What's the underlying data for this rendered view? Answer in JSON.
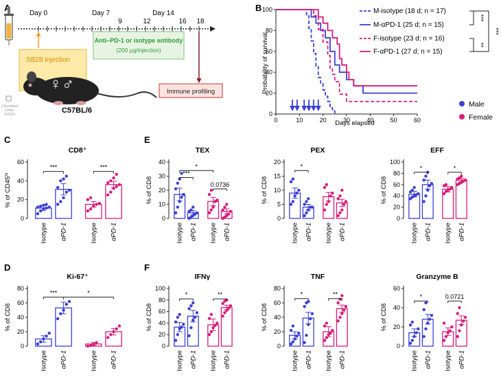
{
  "panel_labels": {
    "A": "A",
    "B": "B",
    "C": "C",
    "D": "D",
    "E": "E",
    "F": "F"
  },
  "colors": {
    "male": "#3b3fd4",
    "female": "#d81b7a",
    "green": "#2e9a3c",
    "orange": "#f0a030",
    "maroon": "#8b1a2a",
    "sb28_fill": "#fde9a8"
  },
  "panel_a": {
    "days": [
      {
        "label": "Day 0",
        "day": 0,
        "pos": "top"
      },
      {
        "label": "Day 7",
        "day": 7,
        "pos": "top"
      },
      {
        "label": "9",
        "day": 9,
        "pos": "mid"
      },
      {
        "label": "12",
        "day": 12,
        "pos": "mid"
      },
      {
        "label": "Day 14",
        "day": 14,
        "pos": "top"
      },
      {
        "label": "16",
        "day": 16,
        "pos": "mid"
      },
      {
        "label": "18",
        "day": 18,
        "pos": "mid"
      }
    ],
    "injection_days": [
      7,
      9,
      12,
      14,
      16
    ],
    "sb28_label": "SB28 injection",
    "antibody_line1": "Anti–PD-1 or isotype antibody",
    "antibody_line2": "(200 μg/injection)",
    "profiling_label": "Immune profiling",
    "strain_label": "C57BL/6",
    "clinic_line1": "Cleveland",
    "clinic_line2": "Clinic",
    "clinic_line3": "©2022",
    "sex_symbols": "♀♂"
  },
  "panel_b": {
    "chart_data": {
      "type": "line",
      "title": "",
      "xlabel": "Days elapsed",
      "ylabel": "Probability of survival",
      "xlim": [
        0,
        60
      ],
      "ylim": [
        0,
        100
      ],
      "xticks": [
        0,
        10,
        20,
        30,
        40,
        50,
        60
      ],
      "yticks": [
        0,
        20,
        40,
        60,
        80,
        100
      ],
      "series": [
        {
          "name": "M-isotype (18 d; n = 17)",
          "group": "male",
          "dashed": true,
          "x": [
            0,
            13,
            14,
            15,
            16,
            17,
            18,
            19,
            20,
            21,
            22,
            23,
            24,
            25
          ],
          "y": [
            100,
            94,
            82,
            70,
            58,
            46,
            35,
            29,
            23,
            17,
            12,
            6,
            3,
            0
          ]
        },
        {
          "name": "M-αPD-1 (25 d; n = 15)",
          "group": "male",
          "dashed": false,
          "x": [
            0,
            15,
            17,
            19,
            21,
            23,
            25,
            27,
            30,
            33,
            37,
            60
          ],
          "y": [
            100,
            93,
            87,
            80,
            73,
            60,
            47,
            40,
            33,
            27,
            20,
            20
          ]
        },
        {
          "name": "F-isotype (23 d; n = 16)",
          "group": "female",
          "dashed": true,
          "x": [
            0,
            16,
            18,
            20,
            22,
            23,
            24,
            25,
            27,
            30,
            60
          ],
          "y": [
            100,
            94,
            81,
            69,
            56,
            44,
            38,
            31,
            19,
            12,
            12
          ]
        },
        {
          "name": "F-αPD-1 (27 d; n = 15)",
          "group": "female",
          "dashed": false,
          "x": [
            0,
            18,
            20,
            22,
            24,
            26,
            27,
            28,
            30,
            31,
            33,
            60
          ],
          "y": [
            100,
            93,
            87,
            80,
            73,
            67,
            53,
            47,
            40,
            33,
            27,
            27
          ]
        }
      ],
      "arrow_days": [
        7,
        9,
        12,
        14,
        16,
        18
      ],
      "brackets": [
        {
          "pair": [
            0,
            1
          ],
          "label": "***"
        },
        {
          "pair": [
            2,
            3
          ],
          "label": "**"
        },
        {
          "pair": [
            0,
            3
          ],
          "label": "***"
        }
      ]
    },
    "legend_male": "Male",
    "legend_female": "Female"
  },
  "bar_panels": [
    {
      "key": "C",
      "title": "CD8⁺",
      "ylabel": "% of CD45ʰⁱ",
      "ymax": 60,
      "yticks": [
        0,
        20,
        40,
        60
      ],
      "means": [
        11,
        31,
        15,
        36
      ],
      "errs": [
        2.5,
        6,
        3,
        3.5
      ],
      "points": [
        [
          5,
          8,
          10,
          11,
          12,
          12,
          13,
          14,
          15
        ],
        [
          15,
          18,
          22,
          28,
          30,
          33,
          40,
          42,
          45
        ],
        [
          8,
          10,
          13,
          15,
          16,
          20,
          22
        ],
        [
          25,
          28,
          32,
          34,
          36,
          38,
          40,
          43,
          47
        ]
      ],
      "sig": [
        {
          "i": 0,
          "j": 1,
          "label": "***",
          "y": 50
        },
        {
          "i": 2,
          "j": 3,
          "label": "***",
          "y": 50
        }
      ],
      "xlabels": [
        "Isotype",
        "αPD-1",
        "Isotype",
        "αPD-1"
      ]
    },
    {
      "key": "E1",
      "title": "TEX",
      "ylabel": "% of CD8",
      "ymax": 40,
      "yticks": [
        0,
        10,
        20,
        30,
        40
      ],
      "means": [
        17,
        4,
        12,
        5
      ],
      "errs": [
        4.5,
        1.5,
        3,
        1.8
      ],
      "points": [
        [
          4,
          8,
          12,
          15,
          17,
          21,
          25,
          28,
          32
        ],
        [
          0,
          1,
          2,
          3,
          4,
          5,
          6,
          8
        ],
        [
          4,
          6,
          8,
          12,
          13,
          17,
          20
        ],
        [
          0,
          1,
          2,
          3,
          5,
          6,
          8,
          10
        ]
      ],
      "sig": [
        {
          "i": 0,
          "j": 1,
          "label": "***",
          "y": 29
        },
        {
          "i": 0,
          "j": 2,
          "label": "*",
          "y": 34
        },
        {
          "i": 2,
          "j": 3,
          "label": "0.0736",
          "y": 21
        }
      ],
      "xlabels": [
        "Isotype",
        "αPD-1",
        "Isotype",
        "αPD-1"
      ]
    },
    {
      "key": "E2",
      "title": "PEX",
      "ylabel": "% of CD8",
      "ymax": 20,
      "yticks": [
        0,
        5,
        10,
        15,
        20
      ],
      "means": [
        9,
        4,
        7.7,
        5.5
      ],
      "errs": [
        1.8,
        1,
        1.5,
        1.3
      ],
      "points": [
        [
          5,
          6,
          8,
          9,
          10,
          13,
          14
        ],
        [
          1,
          2,
          3,
          4,
          4,
          5,
          6,
          7
        ],
        [
          3,
          5,
          6,
          8,
          9,
          11,
          12
        ],
        [
          1,
          2,
          3,
          5,
          6,
          7,
          8,
          10
        ]
      ],
      "sig": [
        {
          "i": 0,
          "j": 1,
          "label": "*",
          "y": 17
        }
      ],
      "xlabels": [
        "Isotype",
        "αPD-1",
        "Isotype",
        "αPD-1"
      ]
    },
    {
      "key": "E3",
      "title": "EFF",
      "ylabel": "% of CD8",
      "ymax": 100,
      "yticks": [
        0,
        20,
        40,
        60,
        80,
        100
      ],
      "means": [
        43,
        60,
        52,
        68
      ],
      "errs": [
        5,
        8,
        5,
        3
      ],
      "points": [
        [
          35,
          38,
          40,
          42,
          44,
          47,
          50,
          55
        ],
        [
          30,
          40,
          50,
          58,
          62,
          68,
          75,
          82
        ],
        [
          44,
          48,
          50,
          52,
          55,
          58,
          60
        ],
        [
          60,
          62,
          64,
          66,
          68,
          70,
          72,
          75
        ]
      ],
      "sig": [
        {
          "i": 0,
          "j": 1,
          "label": "*",
          "y": 82
        },
        {
          "i": 2,
          "j": 3,
          "label": "*",
          "y": 82
        }
      ],
      "xlabels": [
        "Isotype",
        "αPD-1",
        "Isotype",
        "αPD-1"
      ]
    },
    {
      "key": "D",
      "title": "Ki-67⁺",
      "ylabel": "% of CD8",
      "ymax": 80,
      "yticks": [
        0,
        20,
        40,
        60,
        80
      ],
      "means": [
        10,
        53,
        3,
        20
      ],
      "errs": [
        4.5,
        8,
        2,
        4.5
      ],
      "points": [
        [
          3,
          6,
          10,
          14,
          18
        ],
        [
          38,
          45,
          50,
          58,
          62
        ],
        [
          0,
          1,
          3,
          5
        ],
        [
          12,
          16,
          20,
          24,
          28
        ]
      ],
      "sig": [
        {
          "i": 0,
          "j": 1,
          "label": "***",
          "y": 68
        },
        {
          "i": 1,
          "j": 3,
          "label": "*",
          "y": 68
        }
      ],
      "xlabels": [
        "Isotype",
        "αPD-1",
        "Isotype",
        "αPD-1"
      ]
    },
    {
      "key": "F1",
      "title": "IFNγ",
      "ylabel": "% of CD8",
      "ymax": 100,
      "yticks": [
        0,
        20,
        40,
        60,
        80,
        100
      ],
      "means": [
        33,
        52,
        37,
        67
      ],
      "errs": [
        8,
        10,
        10,
        4
      ],
      "points": [
        [
          10,
          20,
          30,
          33,
          38,
          42,
          50,
          55
        ],
        [
          18,
          32,
          45,
          50,
          58,
          65,
          70,
          75
        ],
        [
          20,
          25,
          32,
          36,
          40,
          48,
          55
        ],
        [
          52,
          58,
          62,
          66,
          70,
          74,
          78,
          80
        ]
      ],
      "sig": [
        {
          "i": 0,
          "j": 1,
          "label": "*",
          "y": 82
        },
        {
          "i": 2,
          "j": 3,
          "label": "**",
          "y": 82
        }
      ],
      "xlabels": [
        "Isotype",
        "αPD-1",
        "Isotype",
        "αPD-1"
      ]
    },
    {
      "key": "F2",
      "title": "TNF",
      "ylabel": "% of CD8",
      "ymax": 80,
      "yticks": [
        0,
        20,
        40,
        60,
        80
      ],
      "means": [
        15,
        39,
        20,
        52
      ],
      "errs": [
        5,
        8,
        7,
        5
      ],
      "points": [
        [
          3,
          6,
          10,
          14,
          18,
          22,
          28
        ],
        [
          5,
          15,
          30,
          38,
          45,
          55,
          60,
          62
        ],
        [
          8,
          12,
          16,
          18,
          22,
          28,
          32
        ],
        [
          35,
          40,
          45,
          50,
          55,
          60,
          65,
          70
        ]
      ],
      "sig": [
        {
          "i": 0,
          "j": 1,
          "label": "*",
          "y": 66
        },
        {
          "i": 2,
          "j": 3,
          "label": "**",
          "y": 66
        }
      ],
      "xlabels": [
        "Isotype",
        "αPD-1",
        "Isotype",
        "αPD-1"
      ]
    },
    {
      "key": "F3",
      "title": "Granzyme B",
      "ylabel": "% of CD8",
      "ymax": 60,
      "yticks": [
        0,
        20,
        40,
        60
      ],
      "means": [
        14,
        28,
        15,
        27
      ],
      "errs": [
        4,
        5,
        4,
        4.5
      ],
      "points": [
        [
          3,
          6,
          10,
          14,
          18,
          22,
          25
        ],
        [
          10,
          18,
          24,
          28,
          32,
          38,
          45
        ],
        [
          6,
          10,
          14,
          16,
          20,
          24
        ],
        [
          10,
          16,
          22,
          26,
          30,
          34,
          40
        ]
      ],
      "sig": [
        {
          "i": 0,
          "j": 1,
          "label": "*",
          "y": 47
        },
        {
          "i": 2,
          "j": 3,
          "label": "0.0721",
          "y": 47
        }
      ],
      "xlabels": [
        "Isotype",
        "αPD-1",
        "Isotype",
        "αPD-1"
      ]
    }
  ]
}
